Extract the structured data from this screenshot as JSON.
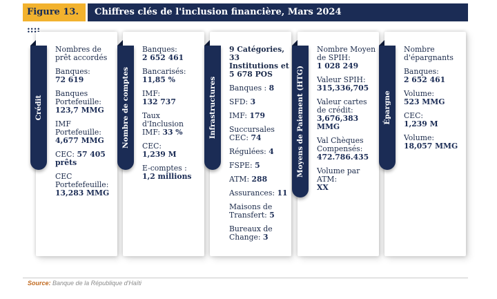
{
  "figure": {
    "label": "Figure 13. ::::",
    "title": "Chiffres clés de l'inclusion financière, Mars 2024"
  },
  "panels": [
    {
      "title": "Crédit",
      "items": [
        {
          "label": "Nombres de prêt accordés",
          "value": ""
        },
        {
          "label": "Banques:",
          "value": "72 619"
        },
        {
          "label": "Banques Portefeuille:",
          "value": "123,7 MMG"
        },
        {
          "label": "IMF Portefeuille:",
          "value": "4,677 MMG"
        },
        {
          "label": "CEC:",
          "value": "57 405 prêts"
        },
        {
          "label": "CEC Portefefeuille:",
          "value": "13,283 MMG"
        }
      ]
    },
    {
      "title": "Nombre de comptes",
      "items": [
        {
          "label": "Banques:",
          "value": "2 652 461"
        },
        {
          "label": "Bancarisés:",
          "value": "11,85 %"
        },
        {
          "label": "IMF:",
          "value": "132 737"
        },
        {
          "label": "Taux d'Inclusion IMF:",
          "value": "33 %"
        },
        {
          "label": "CEC:",
          "value": "1,239 M"
        },
        {
          "label": "E-comptes :",
          "value": "1,2 millions"
        }
      ]
    },
    {
      "title": "Infrastructures",
      "items": [
        {
          "label": "9 Catégories, 33 Institutions et 5 678 POS",
          "value": ""
        },
        {
          "label": "Banques :",
          "value": "8"
        },
        {
          "label": "SFD:",
          "value": "3"
        },
        {
          "label": "IMF:",
          "value": "179"
        },
        {
          "label": "Succursales CEC:",
          "value": "74"
        },
        {
          "label": "Régulées:",
          "value": "4"
        },
        {
          "label": "FSPE:",
          "value": "5"
        },
        {
          "label": "ATM:",
          "value": "288"
        },
        {
          "label": "Assurances:",
          "value": "11"
        },
        {
          "label": "Maisons de Transfert:",
          "value": "5"
        },
        {
          "label": "Bureaux de Change:",
          "value": "3"
        }
      ]
    },
    {
      "title": "Moyens de Paiement (HTG)",
      "items": [
        {
          "label": "Nombre Moyen de SPIH:",
          "value": "1 028 249"
        },
        {
          "label": "Valeur SPIH:",
          "value": "315,336,705"
        },
        {
          "label": "Valeur cartes de crédit:",
          "value": "3,676,383 MMG"
        },
        {
          "label": "Val Chèques Compensés:",
          "value": "472.786.435"
        },
        {
          "label": "Volume par ATM:",
          "value": "XX"
        }
      ]
    },
    {
      "title": "Épargne",
      "items": [
        {
          "label": "Nombre d'épargnants",
          "value": ""
        },
        {
          "label": "Banques:",
          "value": "2 652 461"
        },
        {
          "label": "Volume:",
          "value": "523 MMG"
        },
        {
          "label": "CEC:",
          "value": "1,239 M"
        },
        {
          "label": "Volume:",
          "value": "18,057 MMG"
        }
      ]
    }
  ],
  "source": {
    "prefix": "Source:",
    "text": "Banque de la République d'Haïti"
  }
}
